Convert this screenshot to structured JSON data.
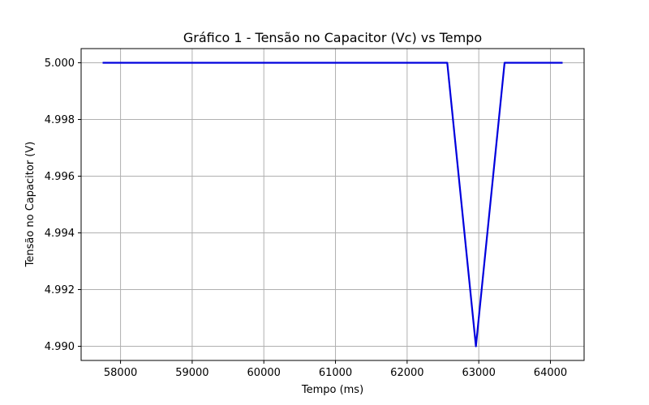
{
  "chart_data": {
    "type": "line",
    "title": "Gráfico 1 - Tensão no Capacitor (Vc) vs Tempo",
    "xlabel": "Tempo (ms)",
    "ylabel": "Tensão no Capacitor (V)",
    "xlim": [
      57450,
      64470
    ],
    "ylim": [
      4.9895,
      5.0005
    ],
    "xticks": [
      58000,
      59000,
      60000,
      61000,
      62000,
      63000,
      64000
    ],
    "yticks": [
      4.99,
      4.992,
      4.994,
      4.996,
      4.998,
      5.0
    ],
    "xtick_labels": [
      "58000",
      "59000",
      "60000",
      "61000",
      "62000",
      "63000",
      "64000"
    ],
    "ytick_labels": [
      "4.990",
      "4.992",
      "4.994",
      "4.996",
      "4.998",
      "5.000"
    ],
    "grid": true,
    "series": [
      {
        "color": "#0000dd",
        "x": [
          57750,
          62560,
          62960,
          63360,
          64170
        ],
        "y": [
          5.0,
          5.0,
          4.99,
          5.0,
          5.0
        ]
      }
    ]
  }
}
